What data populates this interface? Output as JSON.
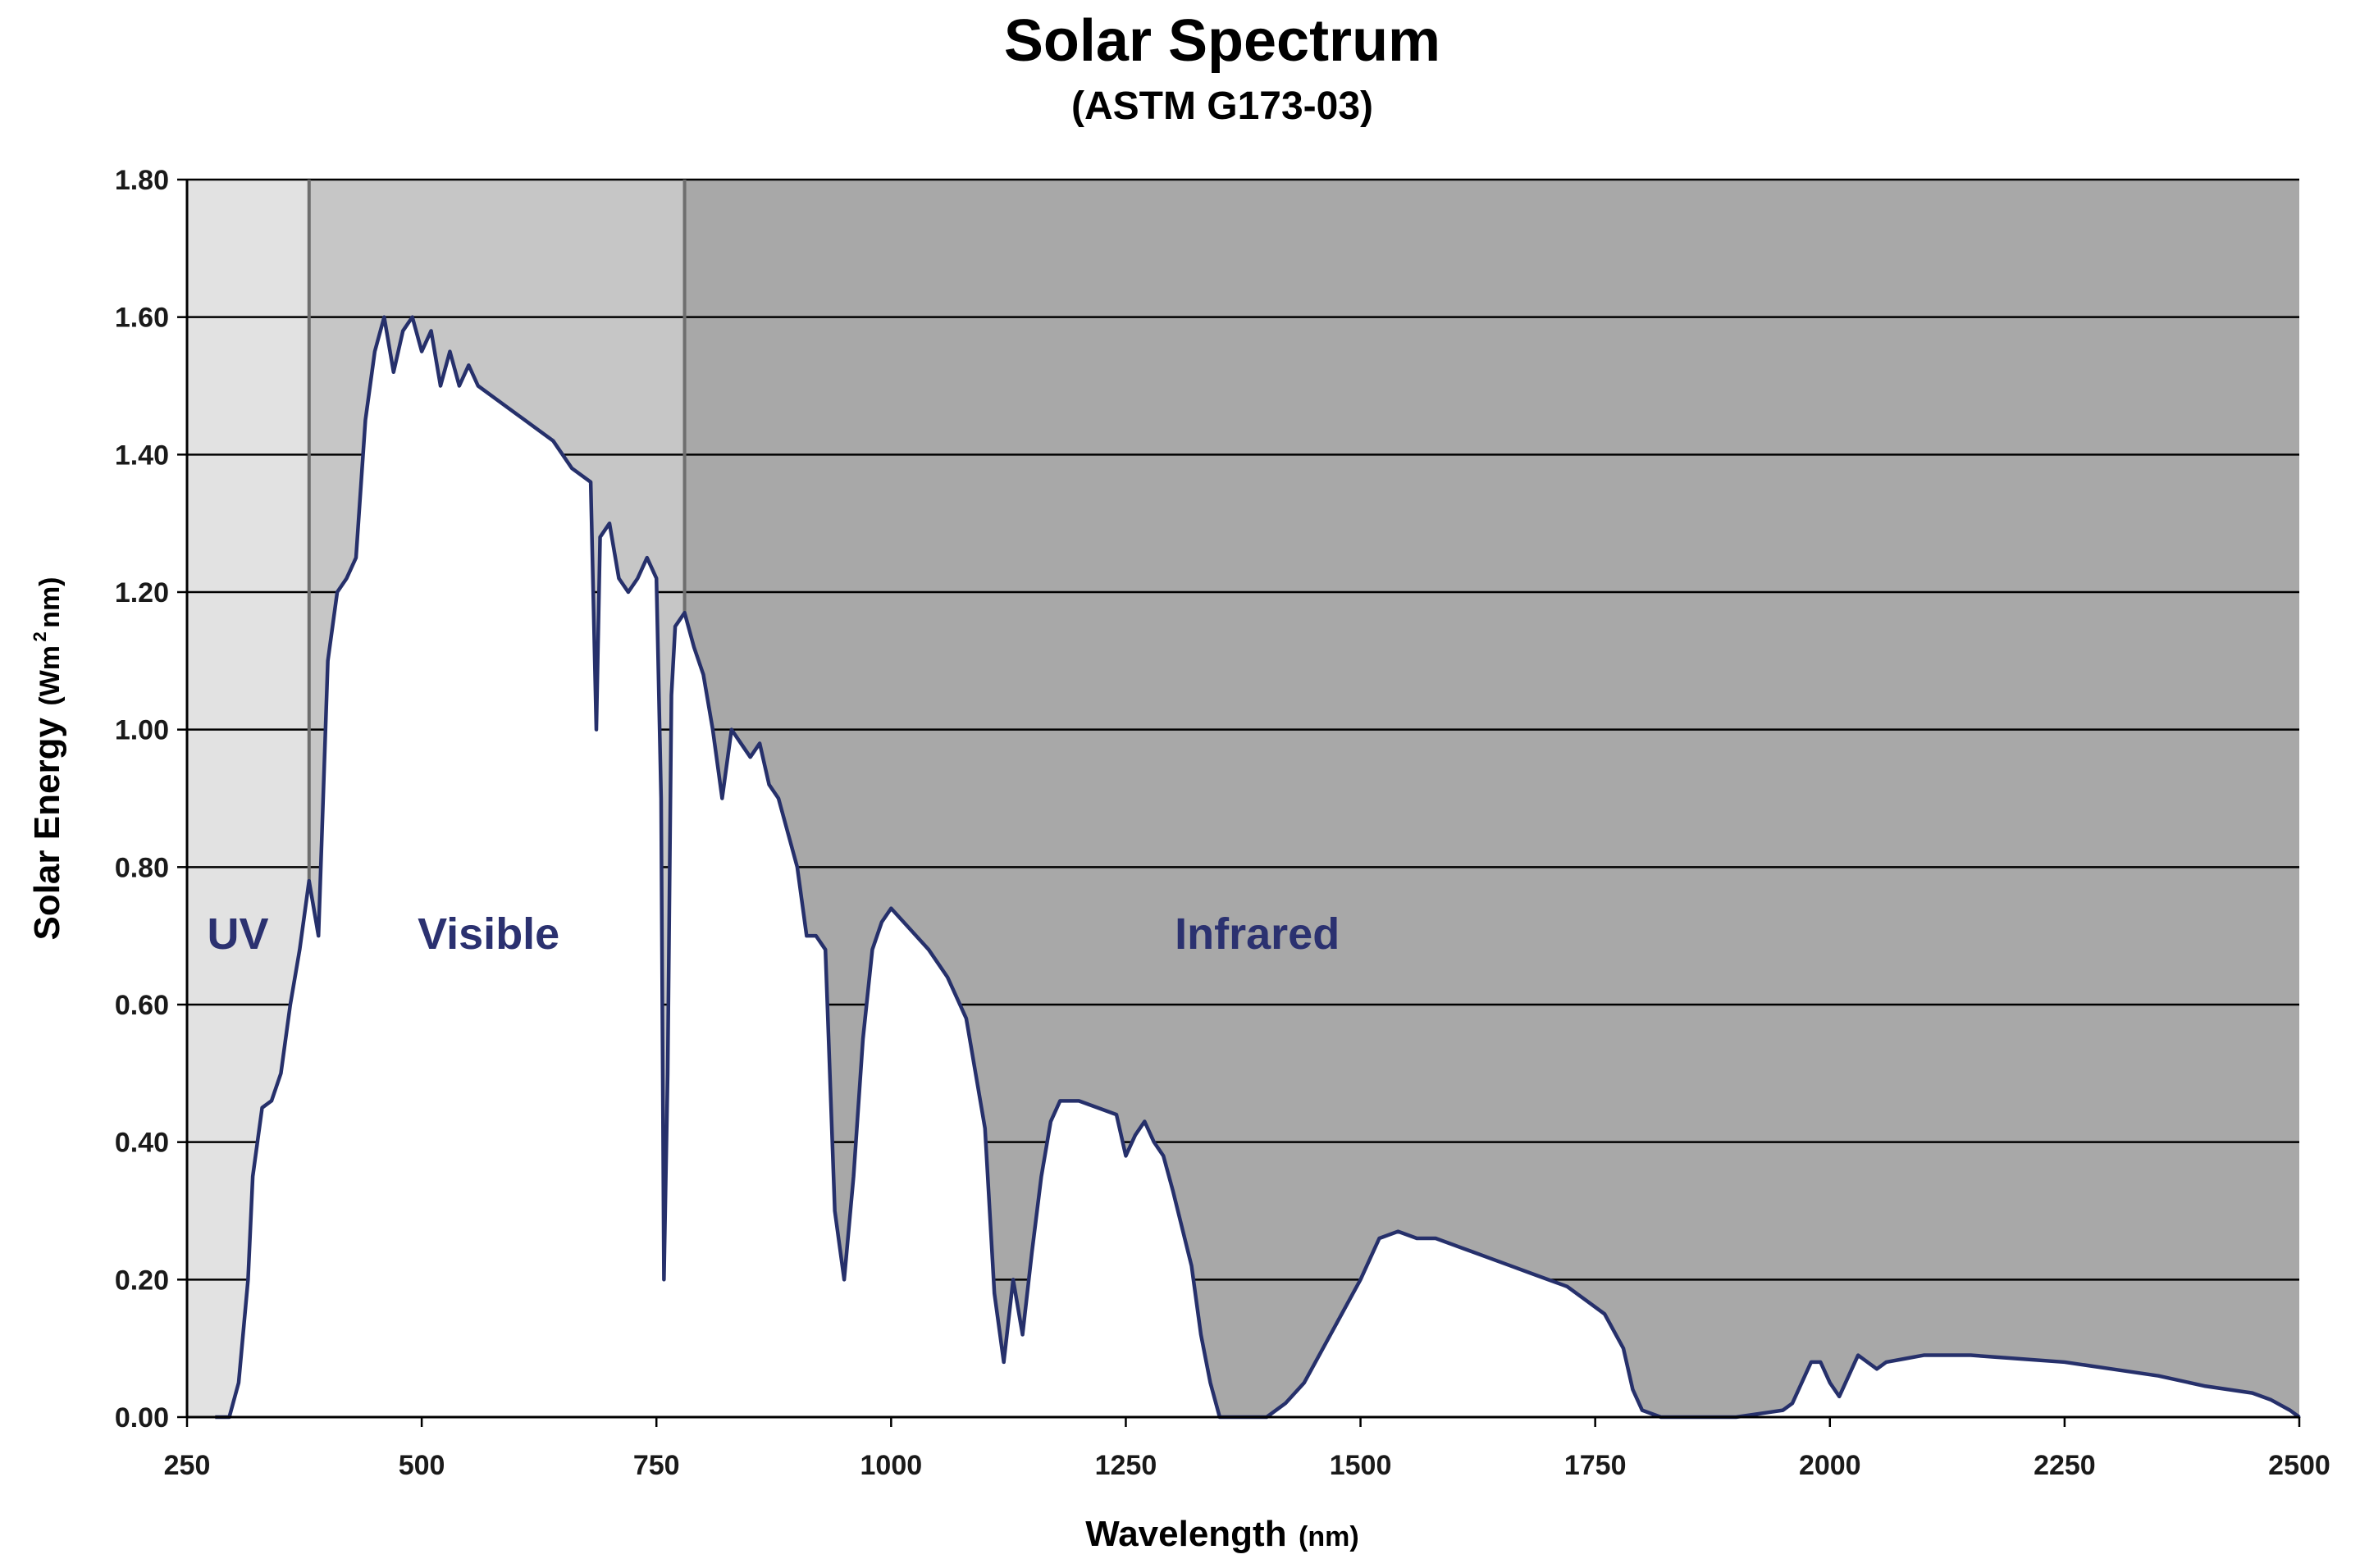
{
  "chart_data": {
    "type": "area",
    "title": "Solar Spectrum",
    "subtitle": "(ASTM G173-03)",
    "xlabel": "Wavelength",
    "xlabel_unit": "(nm)",
    "ylabel": "Solar Energy",
    "ylabel_unit": "(Wm",
    "ylabel_unit_sup": "2",
    "ylabel_unit_tail": " nm)",
    "xlim": [
      250,
      2500
    ],
    "ylim": [
      0,
      1.8
    ],
    "x_ticks": [
      "250",
      "500",
      "750",
      "1000",
      "1250",
      "1500",
      "1750",
      "2000",
      "2250",
      "2500"
    ],
    "y_ticks": [
      "0.00",
      "0.20",
      "0.40",
      "0.60",
      "0.80",
      "1.00",
      "1.20",
      "1.40",
      "1.60",
      "1.80"
    ],
    "grid": "horizontal",
    "regions": [
      {
        "label": "UV",
        "x_range": [
          250,
          380
        ],
        "color": "#e2e2e2"
      },
      {
        "label": "Visible",
        "x_range": [
          380,
          780
        ],
        "color": "#c6c6c6"
      },
      {
        "label": "Infrared",
        "x_range": [
          780,
          2500
        ],
        "color": "#a8a8a8"
      }
    ],
    "series": [
      {
        "color": "#26306b",
        "x": [
          280,
          295,
          305,
          315,
          320,
          330,
          340,
          350,
          360,
          370,
          380,
          390,
          400,
          410,
          420,
          430,
          440,
          450,
          460,
          470,
          480,
          490,
          500,
          510,
          520,
          530,
          540,
          550,
          560,
          580,
          600,
          620,
          640,
          660,
          680,
          686,
          690,
          700,
          710,
          720,
          730,
          740,
          750,
          755,
          758,
          762,
          766,
          770,
          780,
          790,
          800,
          810,
          820,
          830,
          840,
          850,
          860,
          870,
          880,
          890,
          900,
          910,
          920,
          930,
          940,
          950,
          960,
          970,
          980,
          990,
          1000,
          1020,
          1040,
          1060,
          1080,
          1100,
          1110,
          1120,
          1130,
          1140,
          1150,
          1160,
          1170,
          1180,
          1200,
          1220,
          1240,
          1250,
          1260,
          1270,
          1280,
          1290,
          1300,
          1320,
          1330,
          1340,
          1350,
          1360,
          1380,
          1400,
          1420,
          1440,
          1460,
          1480,
          1500,
          1520,
          1540,
          1560,
          1580,
          1600,
          1620,
          1640,
          1660,
          1680,
          1700,
          1720,
          1740,
          1760,
          1780,
          1790,
          1800,
          1820,
          1850,
          1900,
          1950,
          1960,
          1970,
          1980,
          1990,
          2000,
          2010,
          2020,
          2030,
          2040,
          2050,
          2060,
          2080,
          2100,
          2150,
          2200,
          2250,
          2300,
          2350,
          2400,
          2450,
          2470,
          2490,
          2500
        ],
        "y": [
          0.0,
          0.0,
          0.05,
          0.2,
          0.35,
          0.45,
          0.46,
          0.5,
          0.6,
          0.68,
          0.78,
          0.7,
          1.1,
          1.2,
          1.22,
          1.25,
          1.45,
          1.55,
          1.6,
          1.52,
          1.58,
          1.6,
          1.55,
          1.58,
          1.5,
          1.55,
          1.5,
          1.53,
          1.5,
          1.48,
          1.46,
          1.44,
          1.42,
          1.38,
          1.36,
          1.0,
          1.28,
          1.3,
          1.22,
          1.2,
          1.22,
          1.25,
          1.22,
          0.9,
          0.2,
          0.5,
          1.05,
          1.15,
          1.17,
          1.12,
          1.08,
          1.0,
          0.9,
          1.0,
          0.98,
          0.96,
          0.98,
          0.92,
          0.9,
          0.85,
          0.8,
          0.7,
          0.7,
          0.68,
          0.3,
          0.2,
          0.35,
          0.55,
          0.68,
          0.72,
          0.74,
          0.71,
          0.68,
          0.64,
          0.58,
          0.42,
          0.18,
          0.08,
          0.2,
          0.12,
          0.24,
          0.35,
          0.43,
          0.46,
          0.46,
          0.45,
          0.44,
          0.38,
          0.41,
          0.43,
          0.4,
          0.38,
          0.33,
          0.22,
          0.12,
          0.05,
          0.0,
          0.0,
          0.0,
          0.0,
          0.02,
          0.05,
          0.1,
          0.15,
          0.2,
          0.26,
          0.27,
          0.26,
          0.26,
          0.25,
          0.24,
          0.23,
          0.22,
          0.21,
          0.2,
          0.19,
          0.17,
          0.15,
          0.1,
          0.04,
          0.01,
          0.0,
          0.0,
          0.0,
          0.01,
          0.02,
          0.05,
          0.08,
          0.08,
          0.05,
          0.03,
          0.06,
          0.09,
          0.08,
          0.07,
          0.08,
          0.085,
          0.09,
          0.09,
          0.085,
          0.08,
          0.07,
          0.06,
          0.045,
          0.035,
          0.025,
          0.01,
          0.0
        ]
      }
    ]
  }
}
